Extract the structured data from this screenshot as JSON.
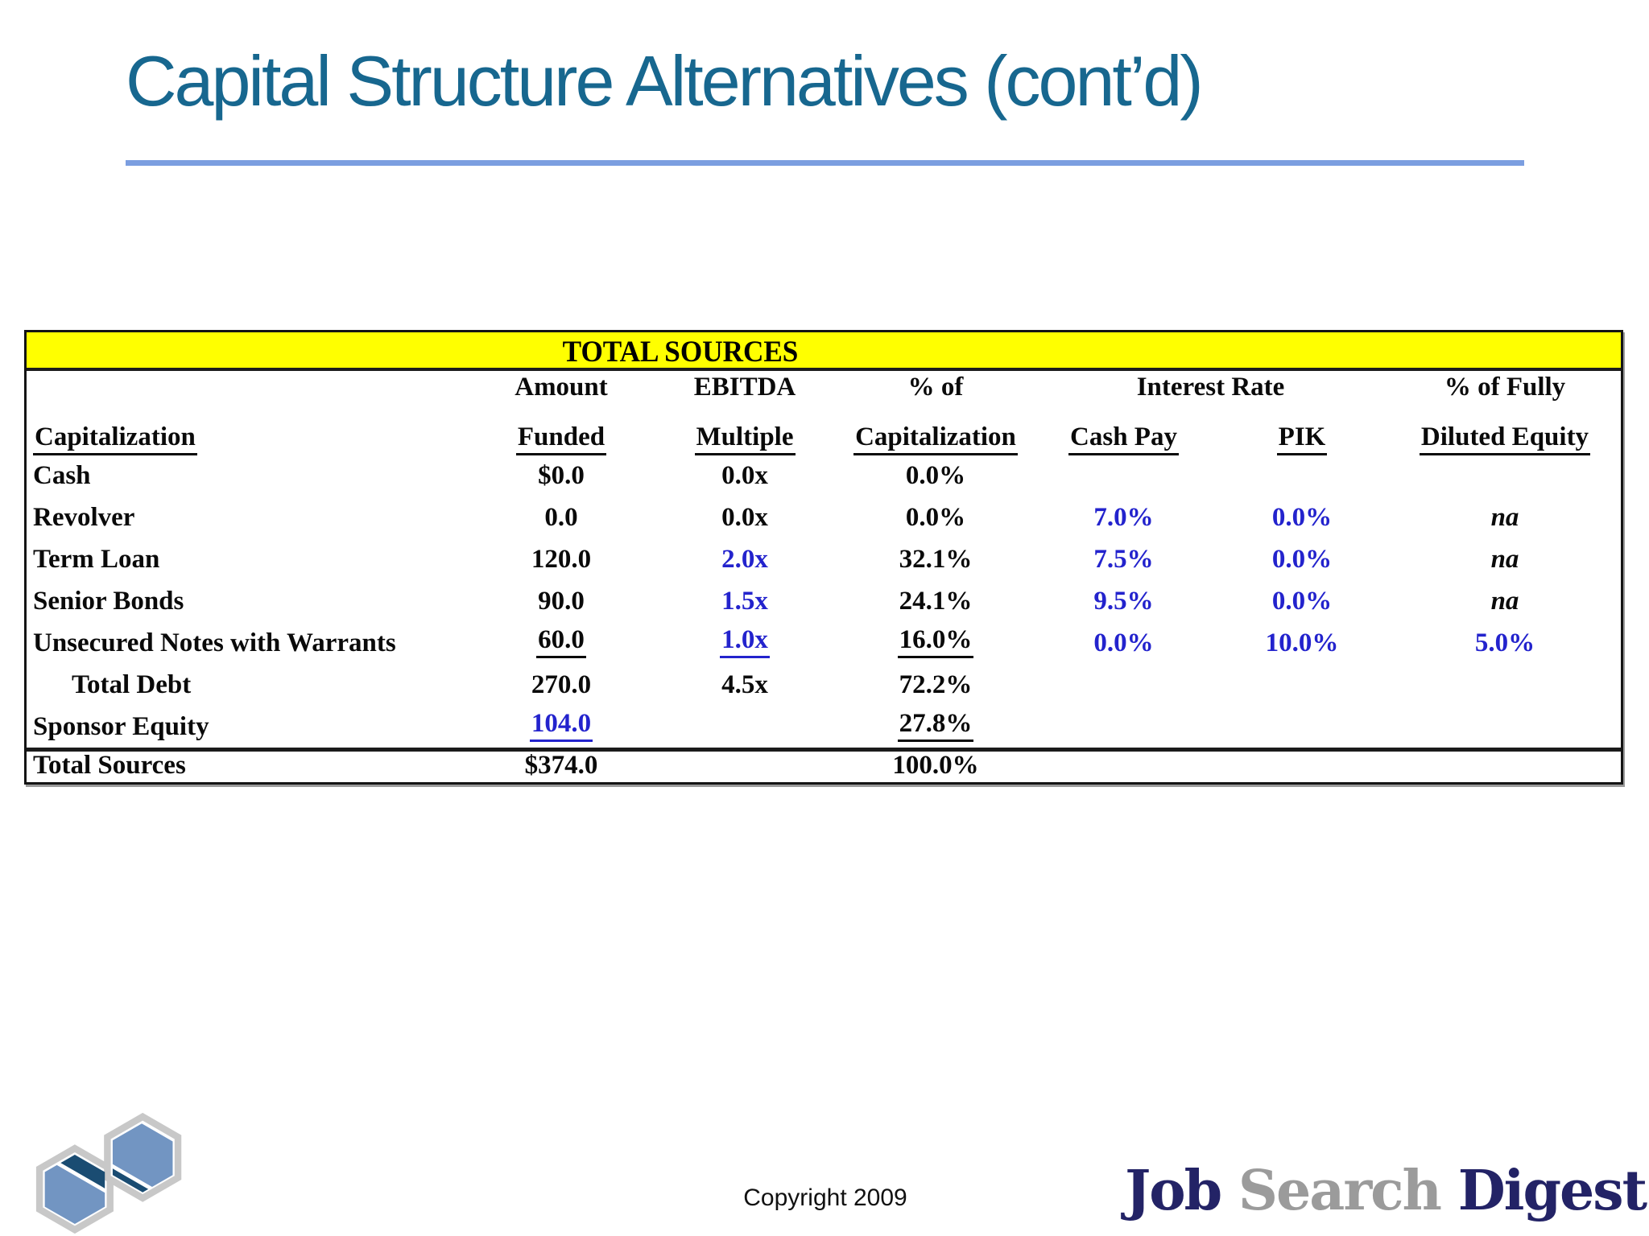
{
  "title": "Capital Structure Alternatives (cont’d)",
  "colors": {
    "title_teal": "#17678f",
    "rule_blue": "#7b9ee0",
    "banner_yellow": "#ffff00",
    "input_value_blue": "#2323cd",
    "brand_navy": "#232366",
    "brand_gray": "#9b9b9b",
    "logo_light_blue": "#7295c2",
    "logo_dark_navy": "#1a4c72",
    "logo_outline_gray": "#c8c8c8"
  },
  "table": {
    "banner": "TOTAL SOURCES",
    "header_row1": [
      {
        "text": "",
        "col": 1,
        "span": 1
      },
      {
        "text": "Amount",
        "col": 2,
        "span": 1
      },
      {
        "text": "EBITDA",
        "col": 3,
        "span": 1
      },
      {
        "text": "% of",
        "col": 4,
        "span": 1
      },
      {
        "text": "Interest Rate",
        "col": 5,
        "span": 2
      },
      {
        "text": "% of Fully",
        "col": 7,
        "span": 1
      }
    ],
    "header_row2": [
      {
        "text": "Capitalization",
        "underline": true,
        "align": "left"
      },
      {
        "text": "Funded",
        "underline": true
      },
      {
        "text": "Multiple",
        "underline": true
      },
      {
        "text": "Capitalization",
        "underline": true
      },
      {
        "text": "Cash Pay",
        "underline": true
      },
      {
        "text": "PIK",
        "underline": true
      },
      {
        "text": "Diluted Equity",
        "underline": true
      }
    ],
    "rows": [
      {
        "label": "Cash",
        "indent": false,
        "cells": [
          {
            "t": "$0.0"
          },
          {
            "t": "0.0x"
          },
          {
            "t": "0.0%"
          },
          {
            "t": ""
          },
          {
            "t": ""
          },
          {
            "t": ""
          }
        ]
      },
      {
        "label": "Revolver",
        "indent": false,
        "cells": [
          {
            "t": "0.0"
          },
          {
            "t": "0.0x"
          },
          {
            "t": "0.0%"
          },
          {
            "t": "7.0%",
            "blue": true
          },
          {
            "t": "0.0%",
            "blue": true
          },
          {
            "t": "na",
            "italic": true
          }
        ]
      },
      {
        "label": "Term Loan",
        "indent": false,
        "cells": [
          {
            "t": "120.0"
          },
          {
            "t": "2.0x",
            "blue": true
          },
          {
            "t": "32.1%"
          },
          {
            "t": "7.5%",
            "blue": true
          },
          {
            "t": "0.0%",
            "blue": true
          },
          {
            "t": "na",
            "italic": true
          }
        ]
      },
      {
        "label": "Senior Bonds",
        "indent": false,
        "cells": [
          {
            "t": "90.0"
          },
          {
            "t": "1.5x",
            "blue": true
          },
          {
            "t": "24.1%"
          },
          {
            "t": "9.5%",
            "blue": true
          },
          {
            "t": "0.0%",
            "blue": true
          },
          {
            "t": "na",
            "italic": true
          }
        ]
      },
      {
        "label": "Unsecured Notes with Warrants",
        "indent": false,
        "cells": [
          {
            "t": "60.0",
            "underline": true
          },
          {
            "t": "1.0x",
            "blue": true,
            "underline": true
          },
          {
            "t": "16.0%",
            "underline": true
          },
          {
            "t": "0.0%",
            "blue": true
          },
          {
            "t": "10.0%",
            "blue": true
          },
          {
            "t": "5.0%",
            "blue": true
          }
        ]
      },
      {
        "label": "Total Debt",
        "indent": true,
        "cells": [
          {
            "t": "270.0"
          },
          {
            "t": "4.5x"
          },
          {
            "t": "72.2%"
          },
          {
            "t": ""
          },
          {
            "t": ""
          },
          {
            "t": ""
          }
        ]
      },
      {
        "label": "Sponsor Equity",
        "indent": false,
        "cells": [
          {
            "t": "104.0",
            "blue": true,
            "underline": true
          },
          {
            "t": ""
          },
          {
            "t": "27.8%",
            "underline": true
          },
          {
            "t": ""
          },
          {
            "t": ""
          },
          {
            "t": ""
          }
        ]
      }
    ],
    "total_row": {
      "label": "Total Sources",
      "cells": [
        {
          "t": "$374.0"
        },
        {
          "t": ""
        },
        {
          "t": "100.0%"
        },
        {
          "t": ""
        },
        {
          "t": ""
        },
        {
          "t": ""
        }
      ]
    }
  },
  "footer": {
    "copyright": "Copyright 2009",
    "brand": {
      "word1": "Job",
      "word2": "Search",
      "word3": "Digest"
    }
  }
}
